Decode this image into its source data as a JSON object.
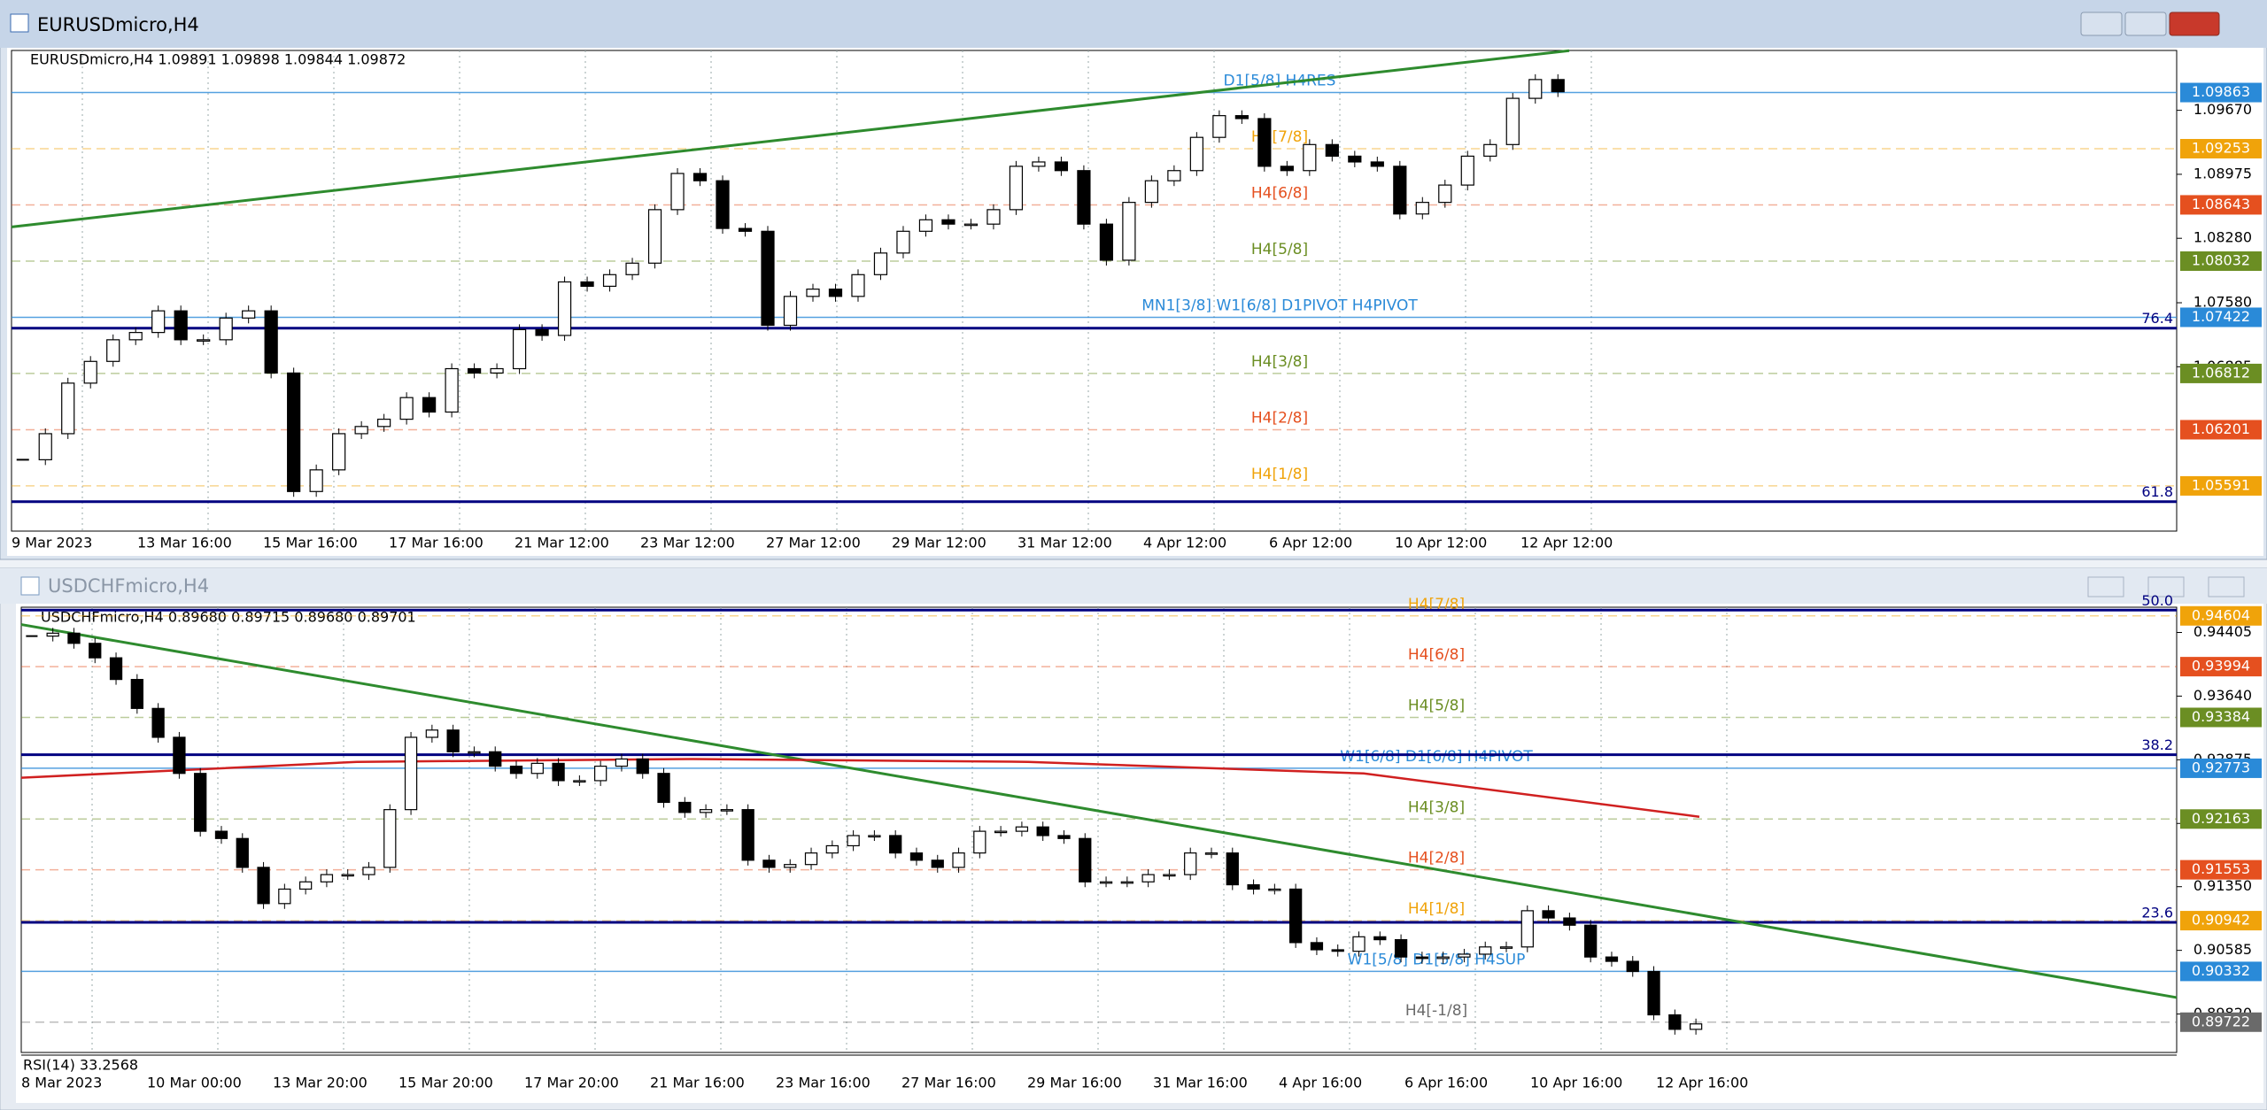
{
  "windows": [
    {
      "title": "EURUSDmicro,H4",
      "header": "EURUSDmicro,H4  1.09891 1.09898 1.09844 1.09872",
      "chart_data": {
        "type": "candlestick",
        "closes": [
          1.05875,
          1.06158,
          1.06707,
          1.06943,
          1.07178,
          1.07257,
          1.07492,
          1.07178,
          1.07178,
          1.07414,
          1.07492,
          1.06817,
          1.0553,
          1.05765,
          1.06158,
          1.06236,
          1.06315,
          1.0655,
          1.06393,
          1.06864,
          1.06817,
          1.06864,
          1.07288,
          1.07225,
          1.07806,
          1.07759,
          1.07885,
          1.0801,
          1.08591,
          1.08984,
          1.08905,
          1.08387,
          1.08356,
          1.07335,
          1.07649,
          1.07728,
          1.07649,
          1.07885,
          1.0812,
          1.08356,
          1.08481,
          1.08434,
          1.08434,
          1.08591,
          1.09062,
          1.09109,
          1.09015,
          1.08434,
          1.08042,
          1.0867,
          1.08905,
          1.09015,
          1.09376,
          1.09612,
          1.0958,
          1.09062,
          1.09015,
          1.09298,
          1.09172,
          1.09109,
          1.09062,
          1.08544,
          1.0867,
          1.08858,
          1.09172,
          1.09298,
          1.098,
          1.10004,
          1.09872
        ],
        "ylim": [
          1.051,
          1.1032
        ],
        "yticks": [
          {
            "value": 1.0967,
            "label": "1.09670"
          },
          1.08975,
          {
            "value": 1.0828,
            "label": "1.08280"
          },
          {
            "value": 1.0758,
            "label": "1.07580"
          },
          1.06885
        ],
        "x_labels": [
          "9 Mar 2023",
          "13 Mar 16:00",
          "15 Mar 16:00",
          "17 Mar 16:00",
          "21 Mar 12:00",
          "23 Mar 12:00",
          "27 Mar 12:00",
          "29 Mar 12:00",
          "31 Mar 12:00",
          "4 Apr 12:00",
          "6 Apr 12:00",
          "10 Apr 12:00",
          "12 Apr 12:00"
        ],
        "levels": [
          {
            "label": "D1[5/8] H4RES",
            "price": 1.09863,
            "color": "#2a8ad8",
            "dashed": false
          },
          {
            "label": "H4[7/8]",
            "price": 1.09253,
            "color": "#f0a30a",
            "dashed": true
          },
          {
            "label": "H4[6/8]",
            "price": 1.08643,
            "color": "#e5501f",
            "dashed": true
          },
          {
            "label": "H4[5/8]",
            "price": 1.08032,
            "color": "#6b8e23",
            "dashed": true
          },
          {
            "label": "MN1[3/8] W1[6/8] D1PIVOT H4PIVOT",
            "price": 1.07422,
            "color": "#2a8ad8",
            "dashed": false
          },
          {
            "label": "H4[3/8]",
            "price": 1.06812,
            "color": "#6b8e23",
            "dashed": true
          },
          {
            "label": "H4[2/8]",
            "price": 1.06201,
            "color": "#e5501f",
            "dashed": true
          },
          {
            "label": "H4[1/8]",
            "price": 1.05591,
            "color": "#f0a30a",
            "dashed": true
          }
        ],
        "fib_lines": [
          {
            "label": "76.4",
            "price": 1.07304
          },
          {
            "label": "61.8",
            "price": 1.0542
          }
        ],
        "trendline": {
          "color": "#2e8b2e",
          "values": [
            1.08403,
            1.10318
          ]
        }
      }
    },
    {
      "title": "USDCHFmicro,H4",
      "header": "USDCHFmicro,H4  0.89680 0.89715 0.89680 0.89701",
      "chart_data": {
        "type": "candlestick",
        "closes": [
          0.94361,
          0.94396,
          0.94274,
          0.941,
          0.9384,
          0.93492,
          0.93145,
          0.92711,
          0.92016,
          0.91929,
          0.91582,
          0.91147,
          0.91321,
          0.91408,
          0.91495,
          0.91495,
          0.91582,
          0.92276,
          0.93145,
          0.93232,
          0.92971,
          0.92971,
          0.92798,
          0.92711,
          0.92832,
          0.92624,
          0.92624,
          0.92798,
          0.92884,
          0.92711,
          0.92363,
          0.92242,
          0.92276,
          0.92276,
          0.91668,
          0.91582,
          0.91616,
          0.91755,
          0.91842,
          0.91964,
          0.91964,
          0.91755,
          0.91668,
          0.91582,
          0.91755,
          0.92016,
          0.92016,
          0.92068,
          0.91964,
          0.91929,
          0.91408,
          0.91408,
          0.91408,
          0.91495,
          0.91495,
          0.91755,
          0.91755,
          0.91373,
          0.91321,
          0.91321,
          0.90678,
          0.90592,
          0.90574,
          0.90748,
          0.90713,
          0.90505,
          0.90487,
          0.90505,
          0.90539,
          0.90626,
          0.90626,
          0.91061,
          0.90974,
          0.90887,
          0.90505,
          0.90453,
          0.90331,
          0.8981,
          0.89636,
          0.89701
        ],
        "ylim": [
          0.89358,
          0.94708
        ],
        "yticks": [
          0.94405,
          {
            "value": 0.9364,
            "label": "0.93640"
          },
          0.92875,
          {
            "value": 0.9211,
            "label": "0.92110"
          },
          {
            "value": 0.9135,
            "label": "0.91350"
          },
          0.90585,
          {
            "value": 0.8982,
            "label": "0.89820"
          }
        ],
        "x_labels": [
          "8 Mar 2023",
          "10 Mar 00:00",
          "13 Mar 20:00",
          "15 Mar 20:00",
          "17 Mar 20:00",
          "21 Mar 16:00",
          "23 Mar 16:00",
          "27 Mar 16:00",
          "29 Mar 16:00",
          "31 Mar 16:00",
          "4 Apr 16:00",
          "6 Apr 16:00",
          "10 Apr 16:00",
          "12 Apr 16:00"
        ],
        "levels": [
          {
            "label": "H4[7/8]",
            "price": 0.94604,
            "color": "#f0a30a",
            "dashed": true
          },
          {
            "label": "H4[6/8]",
            "price": 0.93994,
            "color": "#e5501f",
            "dashed": true
          },
          {
            "label": "H4[5/8]",
            "price": 0.93384,
            "color": "#6b8e23",
            "dashed": true
          },
          {
            "label": "W1[6/8] D1[6/8] H4PIVOT",
            "price": 0.92773,
            "color": "#2a8ad8",
            "dashed": false
          },
          {
            "label": "H4[3/8]",
            "price": 0.92163,
            "color": "#6b8e23",
            "dashed": true
          },
          {
            "label": "H4[2/8]",
            "price": 0.91553,
            "color": "#e5501f",
            "dashed": true
          },
          {
            "label": "H4[1/8]",
            "price": 0.90942,
            "color": "#f0a30a",
            "dashed": true
          },
          {
            "label": "W1[5/8] D1[5/8] H4SUP",
            "price": 0.90332,
            "color": "#2a8ad8",
            "dashed": false
          },
          {
            "label": "H4[-1/8]",
            "price": 0.89722,
            "color": "#6a6a6a",
            "dashed": true
          }
        ],
        "fib_lines": [
          {
            "label": "50.0",
            "price": 0.94673
          },
          {
            "label": "38.2",
            "price": 0.92936
          },
          {
            "label": "23.6",
            "price": 0.90922
          }
        ],
        "trendline": {
          "color": "#2e8b2e",
          "values": [
            0.945,
            0.90018
          ]
        },
        "moving_average": {
          "color": "#d02020",
          "values": [
            0.92659,
            0.9285,
            0.92884,
            0.9285,
            0.92711,
            0.9219
          ]
        },
        "indicator": "RSI(14) 33.2568"
      }
    }
  ]
}
